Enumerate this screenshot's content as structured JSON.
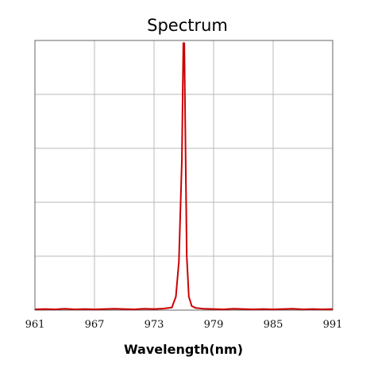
{
  "chart_data": {
    "type": "line",
    "title": "Spectrum",
    "xlabel": "Wavelength(nm)",
    "ylabel": "",
    "xlim": [
      961,
      991
    ],
    "ylim": [
      0,
      1
    ],
    "x_ticks": [
      "961",
      "967",
      "973",
      "979",
      "985",
      "991"
    ],
    "y_gridlines": 5,
    "grid": true,
    "legend": "none",
    "series": [
      {
        "color": "#cc0000",
        "x": [
          961,
          962,
          963,
          964,
          965,
          966,
          967,
          968,
          969,
          970,
          971,
          972,
          973,
          974,
          974.8,
          975.2,
          975.5,
          975.8,
          975.95,
          976.05,
          976.15,
          976.3,
          976.5,
          976.8,
          977.2,
          978,
          979,
          980,
          981,
          982,
          983,
          984,
          985,
          986,
          987,
          988,
          989,
          990,
          991
        ],
        "y": [
          0.003,
          0.004,
          0.003,
          0.005,
          0.003,
          0.004,
          0.003,
          0.004,
          0.005,
          0.004,
          0.003,
          0.005,
          0.004,
          0.006,
          0.01,
          0.05,
          0.18,
          0.55,
          0.99,
          0.99,
          0.66,
          0.2,
          0.05,
          0.015,
          0.008,
          0.005,
          0.004,
          0.003,
          0.005,
          0.004,
          0.003,
          0.004,
          0.003,
          0.004,
          0.005,
          0.003,
          0.004,
          0.003,
          0.004
        ]
      }
    ]
  }
}
